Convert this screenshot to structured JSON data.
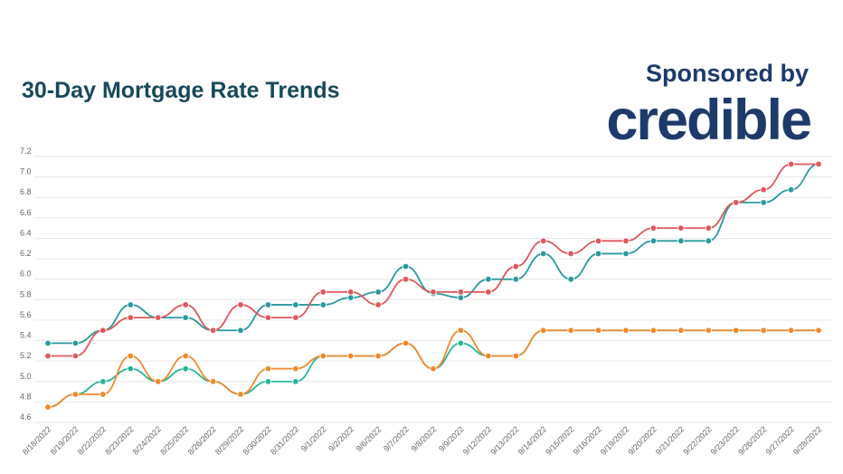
{
  "header": {
    "title": "30-Day Mortgage Rate Trends",
    "sponsor_text": "Sponsored by",
    "sponsor_brand": "credible"
  },
  "chart_data": {
    "type": "line",
    "title": "30-Day Mortgage Rate Trends",
    "xlabel": "",
    "ylabel": "",
    "ylim": [
      4.6,
      7.2
    ],
    "yticks": [
      "4.6",
      "4.8",
      "5.0",
      "5.2",
      "5.4",
      "5.6",
      "5.8",
      "6.0",
      "6.2",
      "6.4",
      "6.6",
      "6.8",
      "7.0",
      "7.2"
    ],
    "grid": true,
    "legend": "none",
    "categories": [
      "8/18/2022",
      "8/19/2022",
      "8/22/2022",
      "8/23/2022",
      "8/24/2022",
      "8/25/2022",
      "8/26/2022",
      "8/29/2022",
      "8/30/2022",
      "8/31/2022",
      "9/1/2022",
      "9/2/2022",
      "9/6/2022",
      "9/7/2022",
      "9/8/2022",
      "9/9/2022",
      "9/12/2022",
      "9/13/2022",
      "9/14/2022",
      "9/15/2022",
      "9/16/2022",
      "9/19/2022",
      "9/20/2022",
      "9/21/2022",
      "9/22/2022",
      "9/23/2022",
      "9/26/2022",
      "9/27/2022",
      "9/28/2022"
    ],
    "series": [
      {
        "color": "#2a9a9e",
        "values": [
          5.375,
          5.375,
          5.5,
          5.75,
          5.625,
          5.625,
          5.5,
          5.5,
          5.75,
          5.75,
          5.75,
          5.82,
          5.875,
          6.125,
          5.86,
          5.82,
          6.0,
          6.0,
          6.25,
          6.0,
          6.25,
          6.25,
          6.375,
          6.375,
          6.375,
          6.75,
          6.75,
          6.875,
          7.125
        ]
      },
      {
        "color": "#e0575c",
        "values": [
          5.25,
          5.25,
          5.5,
          5.625,
          5.625,
          5.75,
          5.5,
          5.75,
          5.625,
          5.625,
          5.875,
          5.875,
          5.75,
          6.0,
          5.875,
          5.875,
          5.875,
          6.125,
          6.375,
          6.25,
          6.375,
          6.375,
          6.5,
          6.5,
          6.5,
          6.75,
          6.875,
          7.125,
          7.125
        ]
      },
      {
        "color": "#26b59c",
        "values": [
          4.75,
          4.875,
          5.0,
          5.125,
          5.0,
          5.125,
          5.0,
          4.875,
          5.0,
          5.0,
          5.25,
          5.25,
          5.25,
          5.375,
          5.125,
          5.375,
          5.25,
          5.25,
          5.5,
          5.5,
          5.5,
          5.5,
          5.5,
          5.5,
          5.5,
          5.5,
          5.5,
          5.5,
          5.5
        ]
      },
      {
        "color": "#f0892a",
        "values": [
          4.75,
          4.875,
          4.875,
          5.25,
          5.0,
          5.25,
          5.0,
          4.875,
          5.125,
          5.125,
          5.25,
          5.25,
          5.25,
          5.375,
          5.125,
          5.5,
          5.25,
          5.25,
          5.5,
          5.5,
          5.5,
          5.5,
          5.5,
          5.5,
          5.5,
          5.5,
          5.5,
          5.5,
          5.5
        ]
      }
    ]
  }
}
